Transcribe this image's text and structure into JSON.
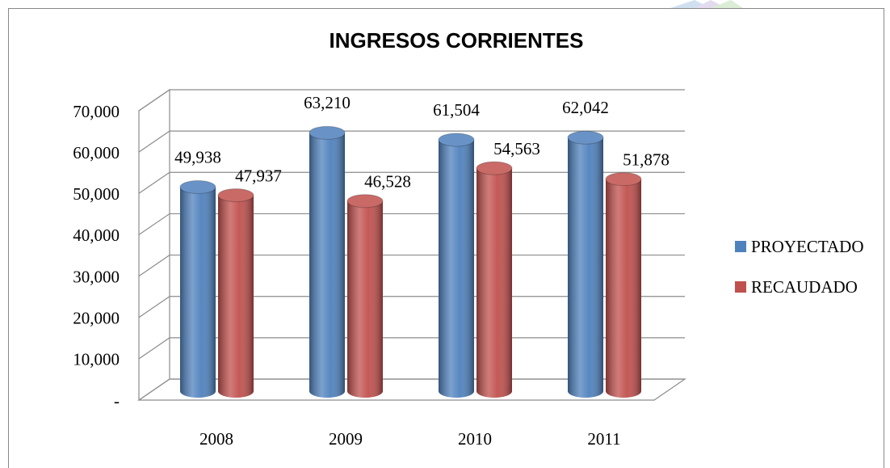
{
  "chart_data": {
    "type": "bar",
    "title": "INGRESOS CORRIENTES",
    "categories": [
      "2008",
      "2009",
      "2010",
      "2011"
    ],
    "series": [
      {
        "name": "PROYECTADO",
        "color": "#4f81bd",
        "values": [
          49938,
          63210,
          61504,
          62042
        ],
        "value_labels": [
          "49,938",
          "63,210",
          "61,504",
          "62,042"
        ]
      },
      {
        "name": "RECAUDADO",
        "color": "#c0504d",
        "values": [
          47937,
          46528,
          54563,
          51878
        ],
        "value_labels": [
          "47,937",
          "46,528",
          "54,563",
          "51,878"
        ]
      }
    ],
    "ylim": [
      0,
      70000
    ],
    "yticks": [
      {
        "value": 0,
        "label": "-"
      },
      {
        "value": 10000,
        "label": "10,000"
      },
      {
        "value": 20000,
        "label": "20,000"
      },
      {
        "value": 30000,
        "label": "30,000"
      },
      {
        "value": 40000,
        "label": "40,000"
      },
      {
        "value": 50000,
        "label": "50,000"
      },
      {
        "value": 60000,
        "label": "60,000"
      },
      {
        "value": 70000,
        "label": "70,000"
      }
    ],
    "grid": true,
    "legend": "right"
  }
}
